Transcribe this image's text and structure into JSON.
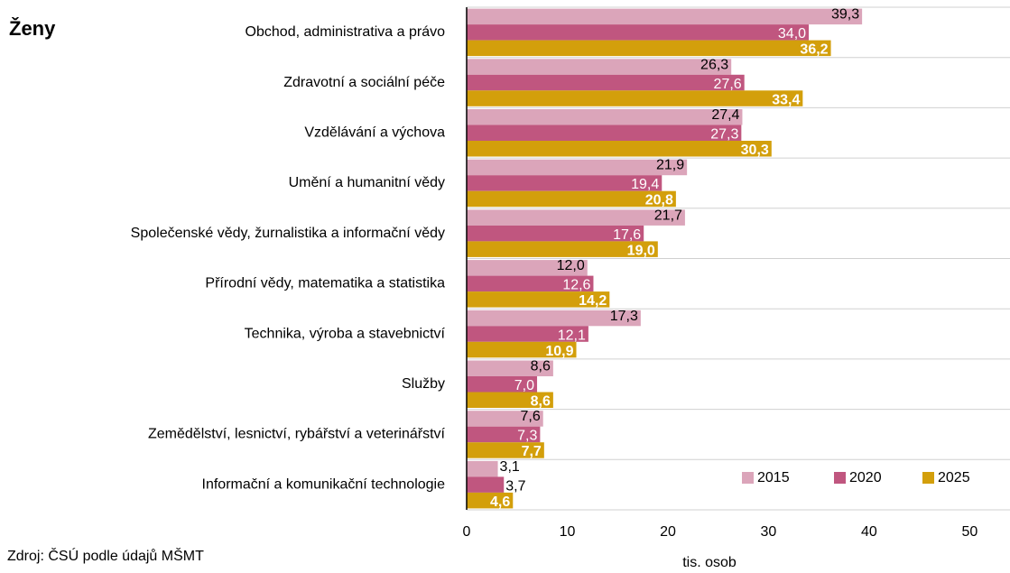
{
  "chart_data": {
    "type": "bar",
    "orientation": "horizontal",
    "title": "Ženy",
    "source": "Zdroj: ČSÚ podle údajů MŠMT",
    "xlabel": "tis. osob",
    "categories": [
      "Obchod, administrativa a právo",
      "Zdravotní a sociální péče",
      "Vzdělávání a výchova",
      "Umění a humanitní vědy",
      "Společenské vědy, žurnalistika a informační vědy",
      "Přírodní vědy, matematika a statistika",
      "Technika, výroba a stavebnictví",
      "Služby",
      "Zemědělství, lesnictví, rybářství a veterinářství",
      "Informační a komunikační technologie"
    ],
    "series": [
      {
        "name": "2015",
        "color": "#dba5ba",
        "values": [
          39.3,
          26.3,
          27.4,
          21.9,
          21.7,
          12.0,
          17.3,
          8.6,
          7.6,
          3.1
        ],
        "value_labels": [
          "39,3",
          "26,3",
          "27,4",
          "21,9",
          "21,7",
          "12,0",
          "17,3",
          "8,6",
          "7,6",
          "3,1"
        ]
      },
      {
        "name": "2020",
        "color": "#c0567f",
        "values": [
          34.0,
          27.6,
          27.3,
          19.4,
          17.6,
          12.6,
          12.1,
          7.0,
          7.3,
          3.7
        ],
        "value_labels": [
          "34,0",
          "27,6",
          "27,3",
          "19,4",
          "17,6",
          "12,6",
          "12,1",
          "7,0",
          "7,3",
          "3,7"
        ]
      },
      {
        "name": "2025",
        "color": "#d39f0b",
        "values": [
          36.2,
          33.4,
          30.3,
          20.8,
          19.0,
          14.2,
          10.9,
          8.6,
          7.7,
          4.6
        ],
        "value_labels": [
          "36,2",
          "33,4",
          "30,3",
          "20,8",
          "19,0",
          "14,2",
          "10,9",
          "8,6",
          "7,7",
          "4,6"
        ]
      }
    ],
    "xlim": [
      0,
      54
    ],
    "xticks": [
      0,
      10,
      20,
      30,
      40,
      50
    ],
    "legend": "lower right"
  }
}
